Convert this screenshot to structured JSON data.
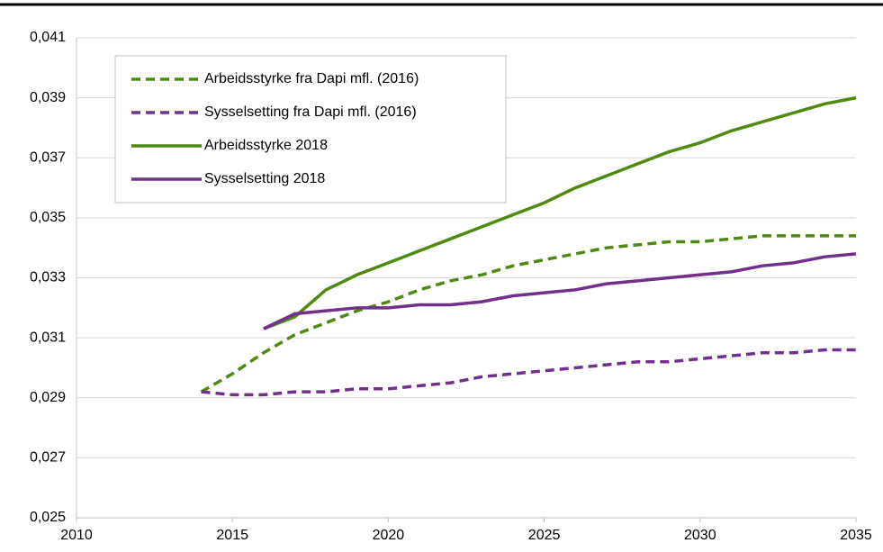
{
  "chart_data": {
    "type": "line",
    "x": [
      2014,
      2015,
      2016,
      2017,
      2018,
      2019,
      2020,
      2021,
      2022,
      2023,
      2024,
      2025,
      2026,
      2027,
      2028,
      2029,
      2030,
      2031,
      2032,
      2033,
      2034,
      2035
    ],
    "series": [
      {
        "name": "Arbeidsstyrke fra Dapi mfl. (2016)",
        "color": "#4f8a10",
        "style": "dashed",
        "values": [
          0.0292,
          0.0298,
          0.0305,
          0.0311,
          0.0315,
          0.0319,
          0.0322,
          0.0326,
          0.0329,
          0.0331,
          0.0334,
          0.0336,
          0.0338,
          0.034,
          0.0341,
          0.0342,
          0.0342,
          0.0343,
          0.0344,
          0.0344,
          0.0344,
          0.0344
        ]
      },
      {
        "name": "Sysselsetting fra Dapi mfl. (2016)",
        "color": "#70308c",
        "style": "dashed",
        "values": [
          0.0292,
          0.0291,
          0.0291,
          0.0292,
          0.0292,
          0.0293,
          0.0293,
          0.0294,
          0.0295,
          0.0297,
          0.0298,
          0.0299,
          0.03,
          0.0301,
          0.0302,
          0.0302,
          0.0303,
          0.0304,
          0.0305,
          0.0305,
          0.0306,
          0.0306
        ]
      },
      {
        "name": "Arbeidsstyrke 2018",
        "color": "#4f8a10",
        "style": "solid",
        "values": [
          null,
          null,
          0.0313,
          0.0317,
          0.0326,
          0.0331,
          0.0335,
          0.0339,
          0.0343,
          0.0347,
          0.0351,
          0.0355,
          0.036,
          0.0364,
          0.0368,
          0.0372,
          0.0375,
          0.0379,
          0.0382,
          0.0385,
          0.0388,
          0.039
        ]
      },
      {
        "name": "Sysselsetting 2018",
        "color": "#70308c",
        "style": "solid",
        "values": [
          null,
          null,
          0.0313,
          0.0318,
          0.0319,
          0.032,
          0.032,
          0.0321,
          0.0321,
          0.0322,
          0.0324,
          0.0325,
          0.0326,
          0.0328,
          0.0329,
          0.033,
          0.0331,
          0.0332,
          0.0334,
          0.0335,
          0.0337,
          0.0338
        ]
      }
    ],
    "xlim": [
      2010,
      2035
    ],
    "xticks": [
      2010,
      2015,
      2020,
      2025,
      2030,
      2035
    ],
    "ylim": [
      0.025,
      0.041
    ],
    "yticks": [
      {
        "value": 0.025,
        "label": "0,025"
      },
      {
        "value": 0.027,
        "label": "0,027"
      },
      {
        "value": 0.029,
        "label": "0,029"
      },
      {
        "value": 0.031,
        "label": "0,031"
      },
      {
        "value": 0.033,
        "label": "0,033"
      },
      {
        "value": 0.035,
        "label": "0,035"
      },
      {
        "value": 0.037,
        "label": "0,037"
      },
      {
        "value": 0.039,
        "label": "0,039"
      },
      {
        "value": 0.041,
        "label": "0,041"
      }
    ],
    "grid": true,
    "legend": "upper left"
  }
}
